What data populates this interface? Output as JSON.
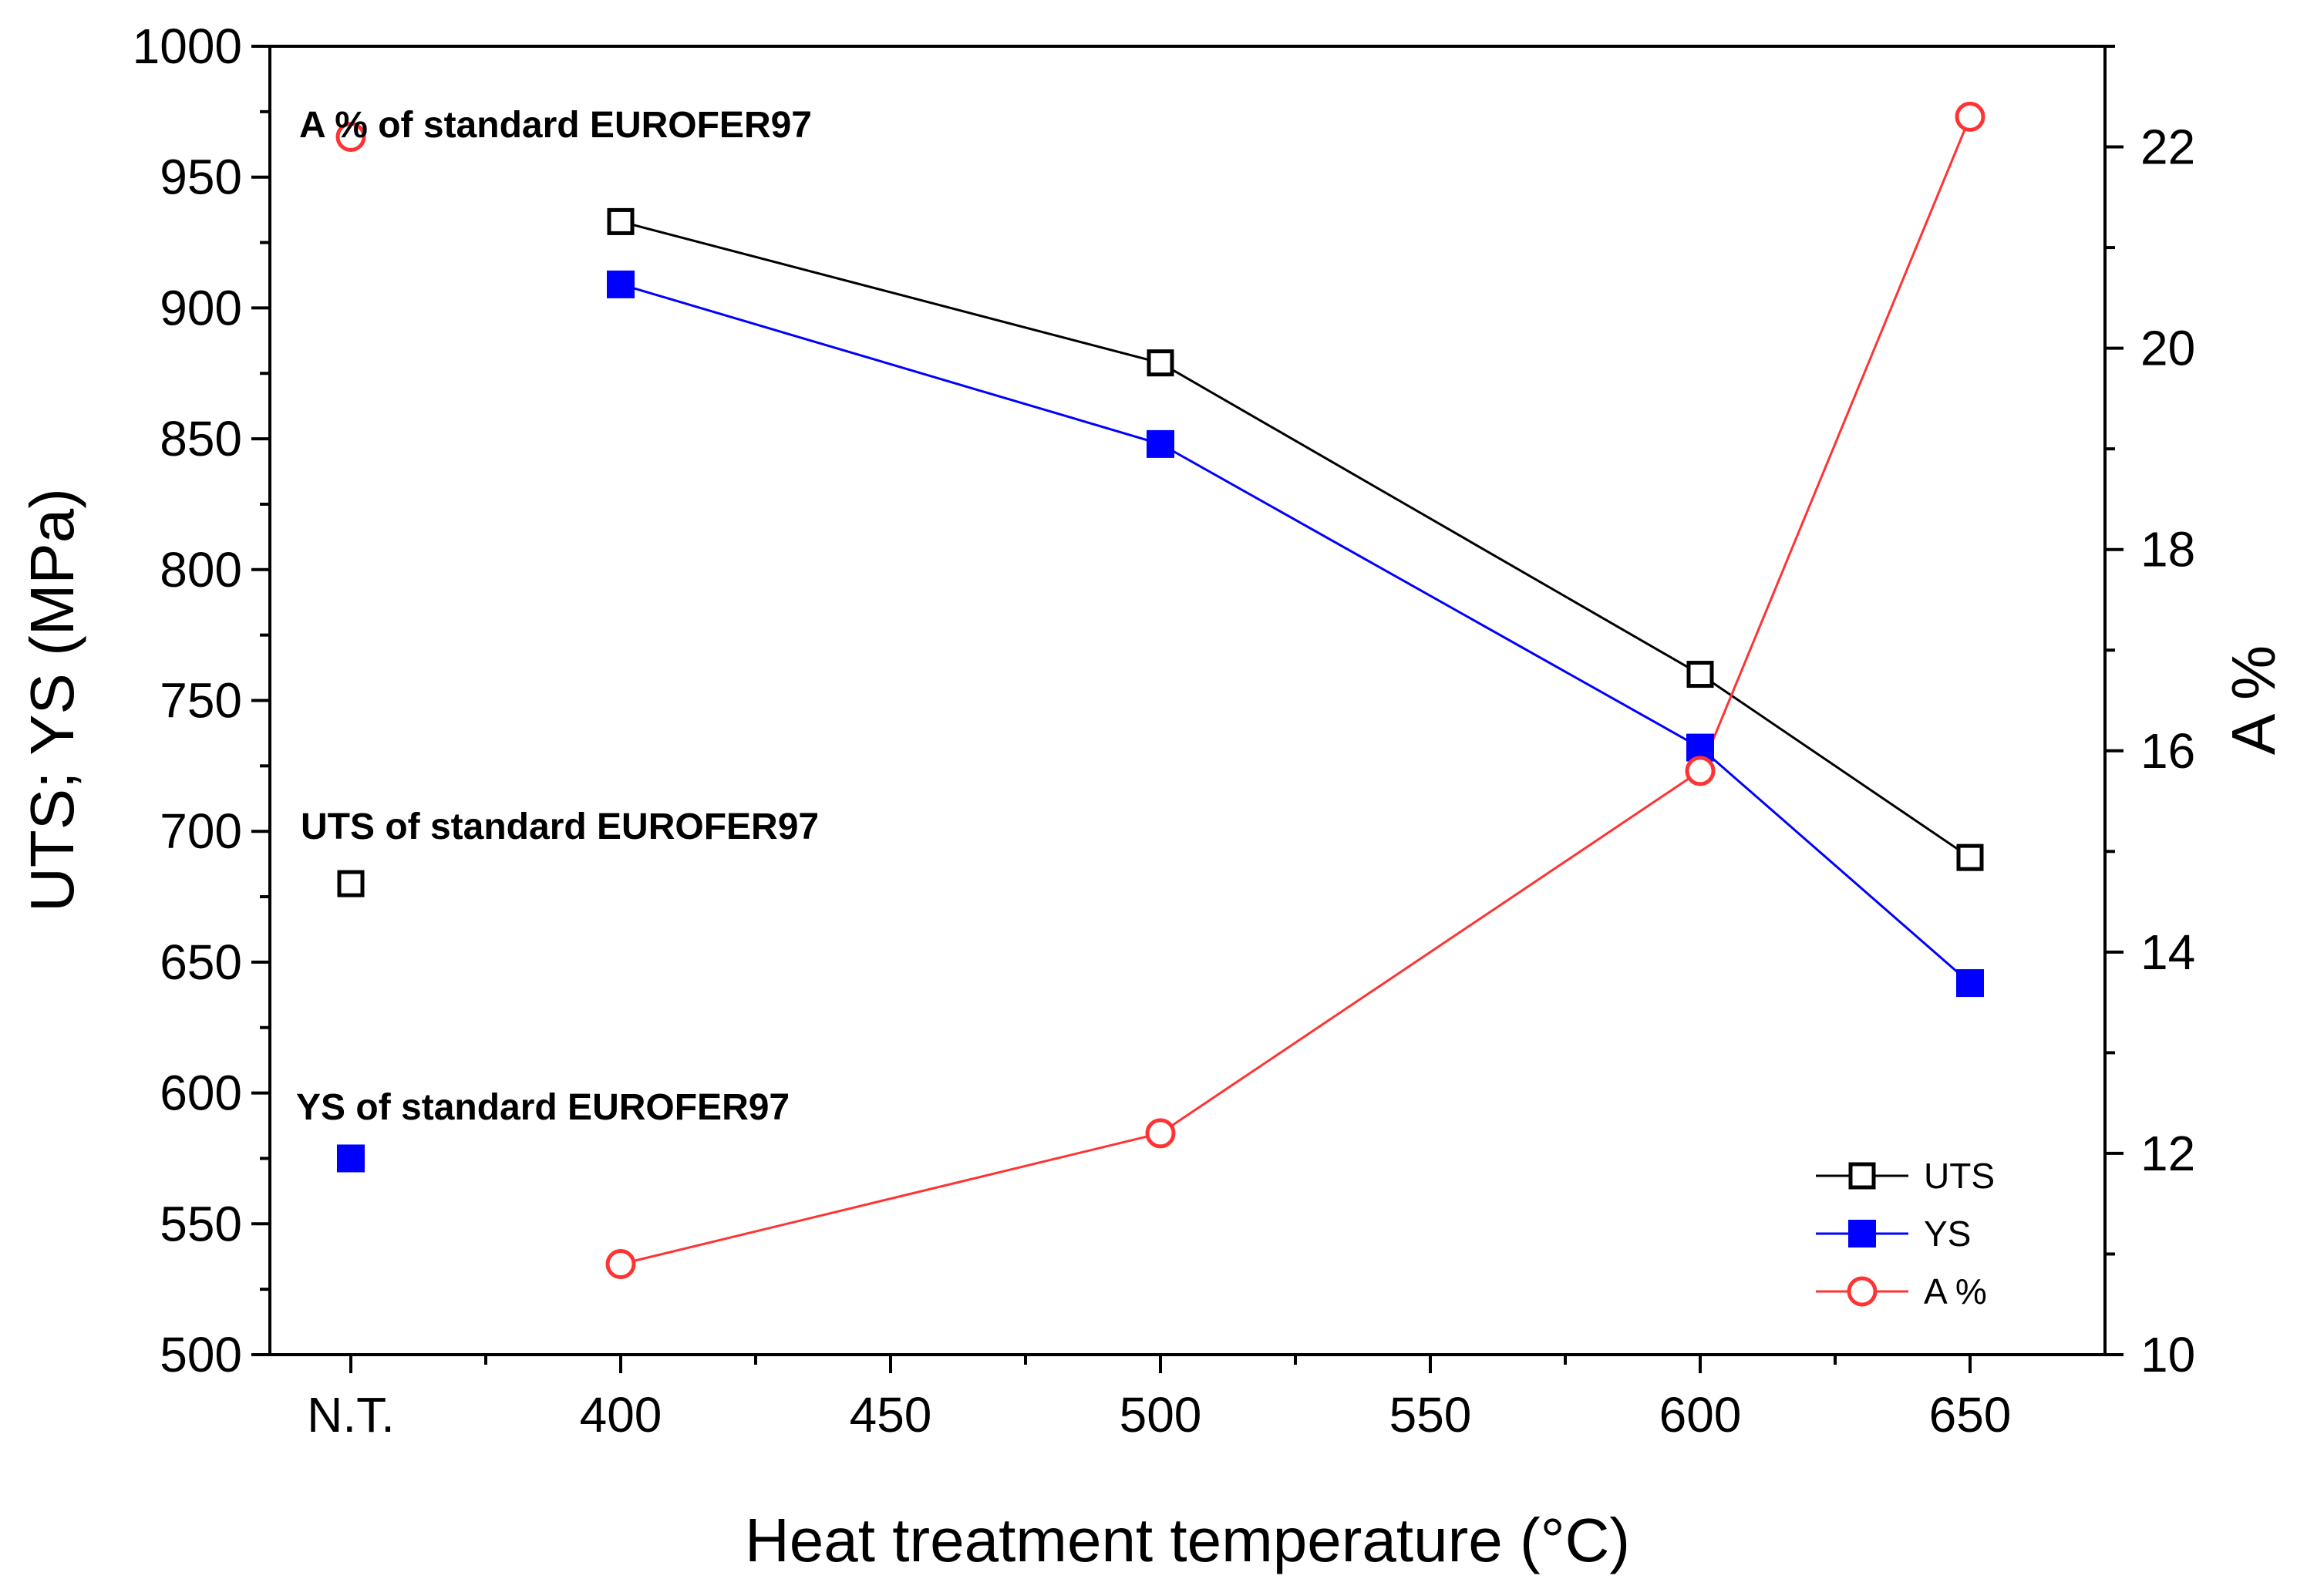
{
  "chart_data": {
    "type": "line",
    "title": "",
    "xlabel": "Heat treatment temperature (°C)",
    "ylabel_left": "UTS; YS (MPa)",
    "ylabel_right": "A %",
    "x_categories": [
      "N.T.",
      "400",
      "450",
      "500",
      "550",
      "600",
      "650"
    ],
    "x_tick_values": [
      350,
      400,
      450,
      500,
      550,
      600,
      650
    ],
    "xlim": [
      335,
      675
    ],
    "ylim_left": [
      500,
      1000
    ],
    "ylim_right": [
      10,
      23
    ],
    "y_left_ticks": [
      500,
      550,
      600,
      650,
      700,
      750,
      800,
      850,
      900,
      950,
      1000
    ],
    "y_right_ticks": [
      10,
      12,
      14,
      16,
      18,
      20,
      22
    ],
    "grid": false,
    "legend_position": "bottom-right",
    "series": [
      {
        "name": "UTS",
        "axis": "left",
        "color": "#000000",
        "marker": "open-square",
        "x": [
          400,
          500,
          600,
          650
        ],
        "values": [
          933,
          879,
          760,
          690
        ]
      },
      {
        "name": "YS",
        "axis": "left",
        "color": "#0000ff",
        "marker": "filled-square",
        "x": [
          400,
          500,
          600,
          650
        ],
        "values": [
          909,
          848,
          732,
          642
        ]
      },
      {
        "name": "A %",
        "axis": "right",
        "color": "#ff3333",
        "marker": "open-circle",
        "x": [
          400,
          500,
          600,
          650
        ],
        "values": [
          10.9,
          12.2,
          15.8,
          22.3
        ]
      }
    ],
    "reference_points": [
      {
        "label": "A % of standard EUROFER97",
        "series": "A %",
        "axis": "right",
        "x": 350,
        "value": 22.1
      },
      {
        "label": "UTS of standard EUROFER97",
        "series": "UTS",
        "axis": "left",
        "x": 350,
        "value": 680
      },
      {
        "label": "YS of standard EUROFER97",
        "series": "YS",
        "axis": "left",
        "x": 350,
        "value": 575
      }
    ]
  }
}
